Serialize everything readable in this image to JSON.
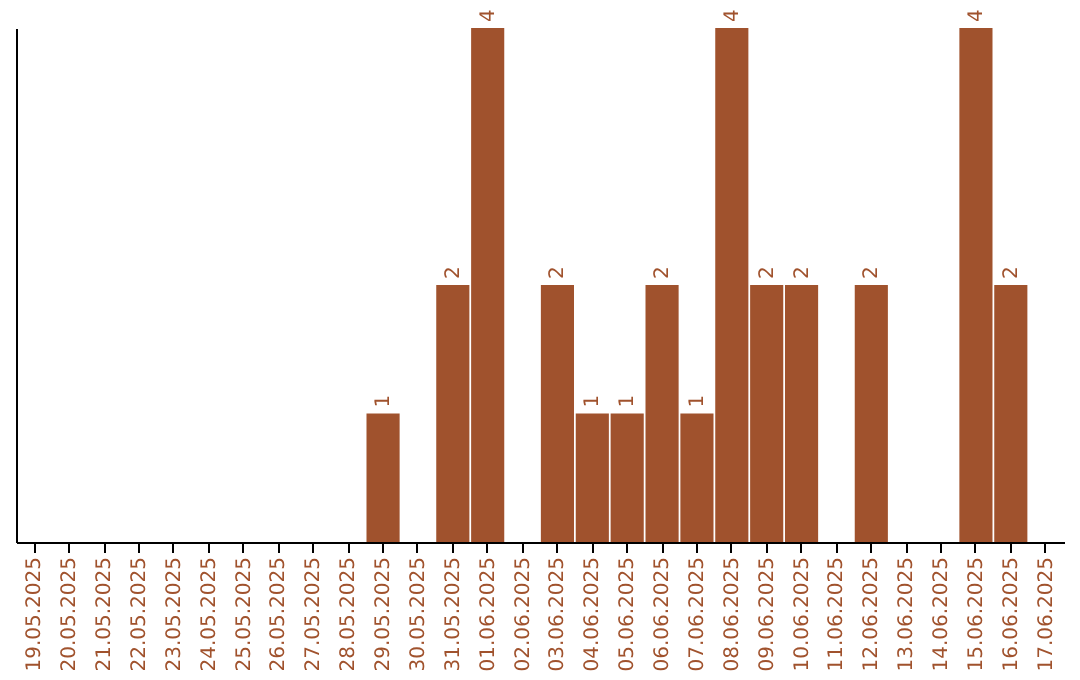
{
  "chart_data": {
    "type": "bar",
    "categories": [
      "19.05.2025",
      "20.05.2025",
      "21.05.2025",
      "22.05.2025",
      "23.05.2025",
      "24.05.2025",
      "25.05.2025",
      "26.05.2025",
      "27.05.2025",
      "28.05.2025",
      "29.05.2025",
      "30.05.2025",
      "31.05.2025",
      "01.06.2025",
      "02.06.2025",
      "03.06.2025",
      "04.06.2025",
      "05.06.2025",
      "06.06.2025",
      "07.06.2025",
      "08.06.2025",
      "09.06.2025",
      "10.06.2025",
      "11.06.2025",
      "12.06.2025",
      "13.06.2025",
      "14.06.2025",
      "15.06.2025",
      "16.06.2025",
      "17.06.2025"
    ],
    "values": [
      0,
      0,
      0,
      0,
      0,
      0,
      0,
      0,
      0,
      0,
      1,
      0,
      2,
      4,
      0,
      2,
      1,
      1,
      2,
      1,
      4,
      2,
      2,
      0,
      2,
      0,
      0,
      4,
      2,
      0
    ],
    "value_labels": [
      null,
      null,
      null,
      null,
      null,
      null,
      null,
      null,
      null,
      null,
      "1",
      null,
      "2",
      "4",
      null,
      "2",
      "1",
      "1",
      "2",
      "1",
      "4",
      "2",
      "2",
      null,
      "2",
      null,
      null,
      "4",
      "2",
      null
    ],
    "color": "#a0522d",
    "tick_labels": "x",
    "grid": false
  }
}
